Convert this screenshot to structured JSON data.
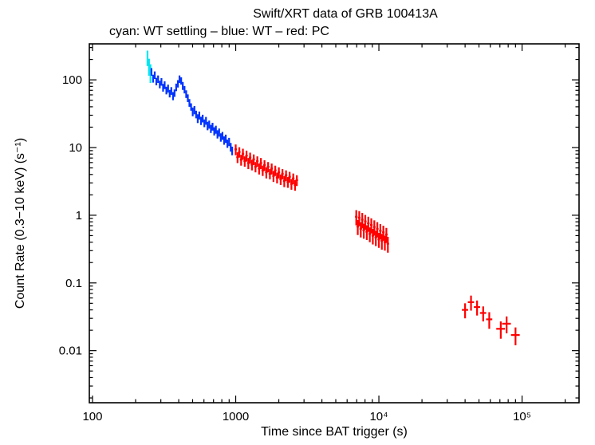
{
  "chart": {
    "title": "Swift/XRT data of GRB 100413A",
    "subtitle": "cyan: WT settling – blue: WT – red: PC",
    "xlabel": "Time since BAT trigger (s)",
    "ylabel": "Count Rate (0.3−10 keV) (s⁻¹)"
  },
  "chart_data": {
    "type": "scatter",
    "title": "Swift/XRT data of GRB 100413A",
    "subtitle": "cyan: WT settling – blue: WT – red: PC",
    "xlabel": "Time since BAT trigger (s)",
    "ylabel": "Count Rate (0.3−10 keV) (s⁻¹)",
    "x_scale": "log",
    "y_scale": "log",
    "error_bars": true,
    "grid": false,
    "legend_position": "subtitle-line",
    "xlim": [
      95,
      250000
    ],
    "ylim": [
      0.0017,
      340
    ],
    "x_ticks": [
      {
        "v": 100,
        "label": "100"
      },
      {
        "v": 1000,
        "label": "1000"
      },
      {
        "v": 10000,
        "label": "10⁴"
      },
      {
        "v": 100000,
        "label": "10⁵"
      }
    ],
    "y_ticks": [
      {
        "v": 100,
        "label": "100"
      },
      {
        "v": 10,
        "label": "10"
      },
      {
        "v": 1,
        "label": "1"
      },
      {
        "v": 0.1,
        "label": "0.1"
      },
      {
        "v": 0.01,
        "label": "0.01"
      }
    ],
    "series": [
      {
        "name": "WT settling",
        "key": "wt-settling",
        "color": "#00e5ee",
        "xerr_frac": 0.008,
        "points": [
          [
            242,
            215,
            55
          ],
          [
            248,
            160,
            45
          ],
          [
            254,
            130,
            40
          ]
        ]
      },
      {
        "name": "WT",
        "key": "wt",
        "color": "#0033ff",
        "xerr_frac": 0.012,
        "points": [
          [
            258,
            132,
            17
          ],
          [
            265,
            105,
            14
          ],
          [
            272,
            118,
            15
          ],
          [
            279,
            95,
            12
          ],
          [
            287,
            103,
            13
          ],
          [
            295,
            86,
            11
          ],
          [
            303,
            94,
            12
          ],
          [
            311,
            77,
            10
          ],
          [
            319,
            84,
            11
          ],
          [
            328,
            70,
            9
          ],
          [
            337,
            75,
            10
          ],
          [
            346,
            63,
            8
          ],
          [
            355,
            69,
            9
          ],
          [
            365,
            58,
            8
          ],
          [
            374,
            64,
            8
          ],
          [
            384,
            78,
            10
          ],
          [
            395,
            88,
            11
          ],
          [
            405,
            103,
            13
          ],
          [
            416,
            97,
            12
          ],
          [
            427,
            82,
            11
          ],
          [
            439,
            72,
            9
          ],
          [
            451,
            62,
            8
          ],
          [
            463,
            54,
            7
          ],
          [
            475,
            46,
            6
          ],
          [
            488,
            40,
            5
          ],
          [
            501,
            34,
            5
          ],
          [
            515,
            36,
            5
          ],
          [
            529,
            31,
            4
          ],
          [
            543,
            27,
            4
          ],
          [
            557,
            30,
            4
          ],
          [
            572,
            25,
            3.5
          ],
          [
            588,
            27,
            3.5
          ],
          [
            604,
            23,
            3
          ],
          [
            620,
            25,
            3.3
          ],
          [
            636,
            21,
            3
          ],
          [
            653,
            22,
            3
          ],
          [
            671,
            19,
            2.6
          ],
          [
            689,
            20.5,
            2.7
          ],
          [
            708,
            17.5,
            2.4
          ],
          [
            727,
            18.5,
            2.5
          ],
          [
            746,
            15.8,
            2.2
          ],
          [
            766,
            16.8,
            2.3
          ],
          [
            787,
            14.2,
            2
          ],
          [
            808,
            15,
            2
          ],
          [
            830,
            12.8,
            1.8
          ],
          [
            852,
            13.6,
            1.9
          ],
          [
            875,
            11.5,
            1.6
          ],
          [
            899,
            12.2,
            1.7
          ],
          [
            923,
            10.2,
            1.5
          ],
          [
            945,
            9,
            1.3
          ]
        ]
      },
      {
        "name": "PC",
        "key": "pc",
        "color": "#ff0000",
        "xerr_frac": 0.02,
        "points": [
          [
            1000,
            9.4,
            1.7
          ],
          [
            1030,
            7.2,
            1.3
          ],
          [
            1060,
            8.6,
            1.5
          ],
          [
            1091,
            6.6,
            1.2
          ],
          [
            1123,
            8.1,
            1.5
          ],
          [
            1156,
            6.3,
            1.1
          ],
          [
            1190,
            7.6,
            1.4
          ],
          [
            1225,
            5.9,
            1.1
          ],
          [
            1261,
            7.1,
            1.3
          ],
          [
            1298,
            5.6,
            1.0
          ],
          [
            1336,
            6.7,
            1.2
          ],
          [
            1375,
            5.2,
            0.9
          ],
          [
            1416,
            6.3,
            1.1
          ],
          [
            1457,
            4.9,
            0.9
          ],
          [
            1500,
            5.9,
            1.1
          ],
          [
            1544,
            4.6,
            0.8
          ],
          [
            1589,
            5.5,
            1.0
          ],
          [
            1636,
            4.3,
            0.8
          ],
          [
            1684,
            5.2,
            0.9
          ],
          [
            1733,
            4.1,
            0.7
          ],
          [
            1784,
            4.9,
            0.9
          ],
          [
            1836,
            3.8,
            0.7
          ],
          [
            1890,
            4.6,
            0.8
          ],
          [
            1945,
            3.6,
            0.65
          ],
          [
            2002,
            4.3,
            0.8
          ],
          [
            2061,
            3.4,
            0.6
          ],
          [
            2121,
            4.1,
            0.7
          ],
          [
            2183,
            3.2,
            0.6
          ],
          [
            2247,
            3.9,
            0.7
          ],
          [
            2313,
            3.1,
            0.56
          ],
          [
            2381,
            3.7,
            0.67
          ],
          [
            2451,
            2.9,
            0.52
          ],
          [
            2523,
            3.5,
            0.63
          ],
          [
            2597,
            2.8,
            0.5
          ],
          [
            2673,
            3.3,
            0.6
          ],
          [
            6950,
            0.95,
            0.24
          ],
          [
            7120,
            0.68,
            0.17
          ],
          [
            7294,
            0.92,
            0.23
          ],
          [
            7473,
            0.63,
            0.16
          ],
          [
            7656,
            0.86,
            0.22
          ],
          [
            7844,
            0.6,
            0.15
          ],
          [
            8036,
            0.81,
            0.2
          ],
          [
            8233,
            0.57,
            0.14
          ],
          [
            8435,
            0.76,
            0.19
          ],
          [
            8641,
            0.53,
            0.13
          ],
          [
            8853,
            0.72,
            0.18
          ],
          [
            9070,
            0.5,
            0.13
          ],
          [
            9292,
            0.67,
            0.17
          ],
          [
            9520,
            0.47,
            0.12
          ],
          [
            9753,
            0.63,
            0.16
          ],
          [
            9992,
            0.44,
            0.11
          ],
          [
            10237,
            0.59,
            0.15
          ],
          [
            10488,
            0.42,
            0.11
          ],
          [
            10745,
            0.56,
            0.14
          ],
          [
            11008,
            0.4,
            0.1
          ],
          [
            11278,
            0.52,
            0.13
          ],
          [
            11554,
            0.38,
            0.1
          ],
          [
            40000,
            0.04,
            0.01,
            0.05
          ],
          [
            44000,
            0.052,
            0.013,
            0.05
          ],
          [
            48500,
            0.044,
            0.011,
            0.05
          ],
          [
            53500,
            0.036,
            0.009,
            0.05
          ],
          [
            59000,
            0.029,
            0.008,
            0.05
          ],
          [
            71000,
            0.021,
            0.006,
            0.07
          ],
          [
            78000,
            0.025,
            0.007,
            0.07
          ],
          [
            90000,
            0.017,
            0.005,
            0.07
          ]
        ]
      }
    ]
  }
}
